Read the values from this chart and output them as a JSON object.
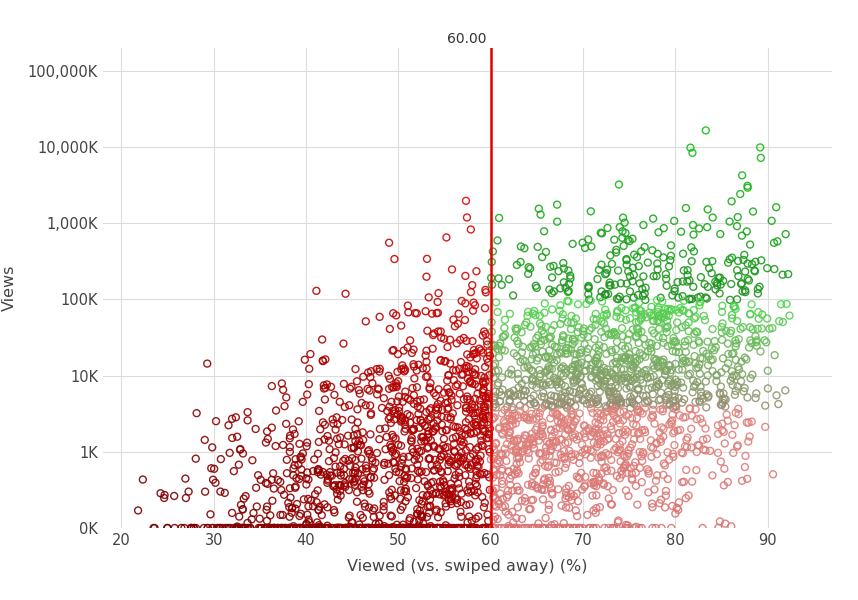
{
  "xlabel": "Viewed (vs. swiped away) (%)",
  "ylabel": "Views",
  "vline_x": 60.0,
  "vline_label": "60.00",
  "x_min": 18,
  "x_max": 97,
  "y_min": 100,
  "y_max": 200000000,
  "ytick_values": [
    100,
    1000,
    10000,
    100000,
    1000000,
    10000000,
    100000000
  ],
  "ytick_labels": [
    "0K",
    "1K",
    "10K",
    "100K",
    "1,000K",
    "10,000K",
    "100,000K"
  ],
  "xtick_values": [
    20,
    30,
    40,
    50,
    60,
    70,
    80,
    90
  ],
  "n_points": 3000,
  "background_color": "#ffffff",
  "grid_color": "#dddddd",
  "vline_color": "#e00000",
  "marker_size": 5,
  "marker_linewidth": 1.0,
  "threshold_x": 60.0,
  "seed": 42
}
